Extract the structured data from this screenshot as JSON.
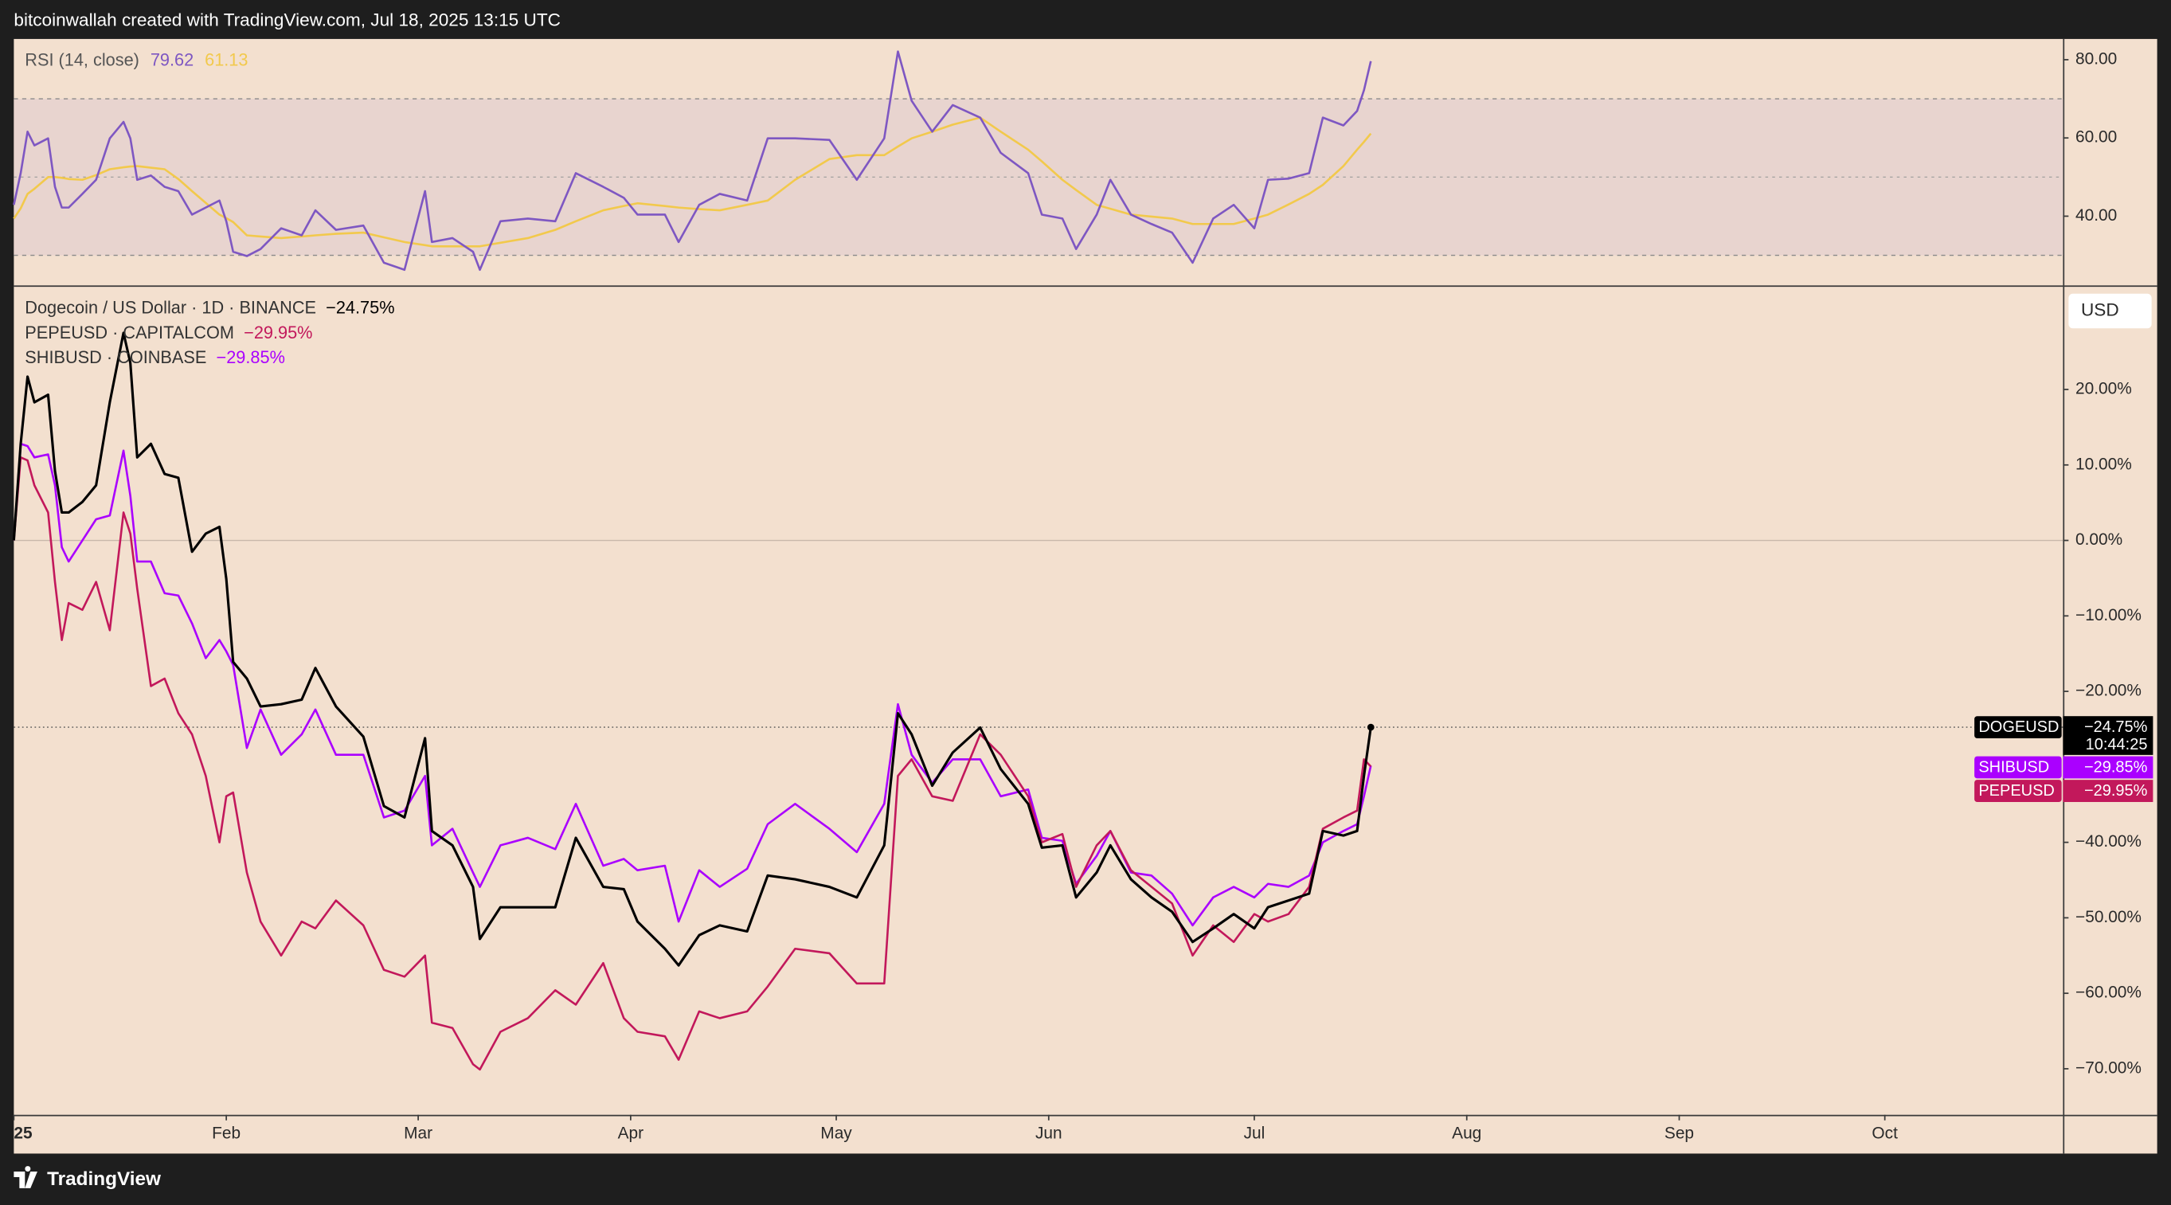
{
  "header": "bitcoinwallah created with TradingView.com, Jul 18, 2025 13:15 UTC",
  "footer": "TradingView",
  "chart_data": [
    {
      "type": "line",
      "title": "RSI (14, close)",
      "x": [
        0,
        1,
        2,
        3,
        5,
        6,
        7,
        8,
        10,
        12,
        14,
        16,
        17,
        18,
        20,
        22,
        24,
        26,
        28,
        30,
        31,
        32,
        34,
        36,
        39,
        42,
        44,
        47,
        51,
        54,
        57,
        60,
        61,
        64,
        67,
        68,
        71,
        75,
        79,
        82,
        86,
        89,
        91,
        95,
        97,
        100,
        103,
        107,
        110,
        114,
        119,
        123,
        127,
        129,
        131,
        134,
        137,
        141,
        144,
        148,
        150,
        153,
        155,
        158,
        160,
        163,
        166,
        169,
        172,
        175,
        178,
        181,
        183,
        186,
        189,
        191,
        194,
        196,
        197,
        198
      ],
      "xlim": [
        0,
        299
      ],
      "ylim": [
        22.3,
        85.3
      ],
      "yticks": [
        {
          "value": 40,
          "label": "40.00"
        },
        {
          "value": 60,
          "label": "60.00"
        },
        {
          "value": 80,
          "label": "80.00"
        }
      ],
      "bands": [
        30,
        70
      ],
      "midline": 50,
      "band_color": "#e8d4cf",
      "series": [
        {
          "color": "#7e57c2",
          "values": [
            42.9,
            51,
            61.6,
            58.1,
            59.9,
            47.5,
            42.2,
            42.2,
            45.7,
            49.3,
            59.9,
            64.1,
            59.9,
            49.3,
            50.4,
            47.5,
            46.4,
            40.4,
            42.2,
            44,
            38.7,
            30.9,
            29.8,
            31.6,
            36.9,
            35.1,
            41.5,
            36.5,
            37.6,
            28.1,
            26.3,
            46.4,
            33.4,
            34.4,
            30.9,
            26.3,
            38.7,
            39.4,
            38.7,
            51,
            47.5,
            44.7,
            40.4,
            40.4,
            33.4,
            42.9,
            45.7,
            44,
            59.9,
            59.9,
            59.5,
            49.3,
            59.9,
            82.1,
            69.5,
            61.6,
            68.4,
            65.2,
            56.2,
            51,
            40.4,
            39.4,
            31.6,
            40.4,
            49.3,
            40.4,
            38,
            35.8,
            28.1,
            39.4,
            42.9,
            36.9,
            49.3,
            49.6,
            51,
            65.2,
            63.2,
            66.9,
            72.2,
            79.62
          ]
        },
        {
          "color": "#f2c94c",
          "values": [
            39.4,
            42,
            45.7,
            47,
            50,
            50,
            49.8,
            49.5,
            49.3,
            50.5,
            52,
            52.5,
            52.7,
            52.8,
            52.4,
            52,
            49.5,
            46.4,
            43.4,
            40.4,
            39.5,
            38.5,
            35.1,
            34.8,
            34.4,
            34.8,
            35.1,
            35.5,
            35.8,
            34.6,
            33.4,
            32.6,
            32.3,
            32.3,
            32.3,
            32.3,
            33.2,
            34.4,
            36.5,
            38.7,
            41.5,
            42.6,
            43.3,
            42.6,
            42.2,
            41.8,
            41.5,
            42.9,
            44,
            49.3,
            54.6,
            55.6,
            55.6,
            57.8,
            59.9,
            61.6,
            63.4,
            65.2,
            61.6,
            57,
            54,
            49.3,
            46.7,
            42.9,
            41.9,
            40.4,
            39.9,
            39.4,
            38,
            38,
            38,
            39.4,
            40.4,
            43,
            45.7,
            48,
            52.8,
            57,
            59,
            61.13
          ]
        }
      ]
    },
    {
      "type": "line",
      "unit": "USD",
      "countdown": "10:44:25",
      "price_line": true,
      "x": [
        0,
        1,
        2,
        3,
        5,
        6,
        7,
        8,
        10,
        12,
        14,
        16,
        17,
        18,
        20,
        22,
        24,
        26,
        28,
        30,
        31,
        32,
        34,
        36,
        39,
        42,
        44,
        47,
        51,
        54,
        57,
        60,
        61,
        64,
        67,
        68,
        71,
        75,
        79,
        82,
        86,
        89,
        91,
        95,
        97,
        100,
        103,
        107,
        110,
        114,
        119,
        123,
        127,
        129,
        131,
        134,
        137,
        141,
        144,
        148,
        150,
        153,
        155,
        158,
        160,
        163,
        166,
        169,
        172,
        175,
        178,
        181,
        183,
        186,
        189,
        191,
        194,
        196,
        197,
        198
      ],
      "xlim": [
        0,
        299
      ],
      "ylim": [
        -76.1,
        33.6
      ],
      "xticks": [
        {
          "value": 0,
          "label": "25"
        },
        {
          "value": 31,
          "label": "Feb"
        },
        {
          "value": 59,
          "label": "Mar"
        },
        {
          "value": 90,
          "label": "Apr"
        },
        {
          "value": 120,
          "label": "May"
        },
        {
          "value": 151,
          "label": "Jun"
        },
        {
          "value": 181,
          "label": "Jul"
        },
        {
          "value": 212,
          "label": "Aug"
        },
        {
          "value": 243,
          "label": "Sep"
        },
        {
          "value": 273,
          "label": "Oct"
        }
      ],
      "yticks": [
        {
          "value": -70,
          "label": "−70.00%"
        },
        {
          "value": -60,
          "label": "−60.00%"
        },
        {
          "value": -50,
          "label": "−50.00%"
        },
        {
          "value": -40,
          "label": "−40.00%"
        },
        {
          "value": -20,
          "label": "−20.00%"
        },
        {
          "value": -10,
          "label": "−10.00%"
        },
        {
          "value": 0,
          "label": "0.00%"
        },
        {
          "value": 10,
          "label": "10.00%"
        },
        {
          "value": 20,
          "label": "20.00%"
        }
      ],
      "baseline": 0,
      "series": [
        {
          "name": "Dogecoin / US Dollar · 1D · BINANCE",
          "tag": "DOGEUSD",
          "last_label": "−24.75%",
          "color": "#000000",
          "values": [
            0,
            12.8,
            21.7,
            18.3,
            19.3,
            9.2,
            3.7,
            3.7,
            5.1,
            7.3,
            18.3,
            27.5,
            23.5,
            11,
            12.8,
            8.8,
            8.3,
            -1.5,
            0.9,
            1.8,
            -5.1,
            -16.1,
            -18.3,
            -22,
            -21.7,
            -21.1,
            -16.9,
            -22,
            -26,
            -35.2,
            -36.7,
            -26.2,
            -38.5,
            -40.4,
            -45.9,
            -52.8,
            -48.6,
            -48.6,
            -48.6,
            -39.4,
            -45.9,
            -46.2,
            -50.5,
            -54.1,
            -56.3,
            -52.3,
            -51,
            -51.8,
            -44.4,
            -44.9,
            -45.9,
            -47.3,
            -40.4,
            -22.9,
            -25.7,
            -32.5,
            -28.1,
            -24.8,
            -30.3,
            -34.9,
            -40.7,
            -40.4,
            -47.3,
            -44,
            -40.4,
            -44.9,
            -47.3,
            -49.2,
            -53.2,
            -51.4,
            -49.5,
            -51.4,
            -48.6,
            -47.7,
            -46.8,
            -38.5,
            -39.1,
            -38.5,
            -31.2,
            -24.75
          ]
        },
        {
          "name": "PEPEUSD · CAPITALCOM",
          "tag": "PEPEUSD",
          "last_label": "−29.95%",
          "color": "#c2185b",
          "values": [
            0,
            11,
            10.6,
            7.3,
            3.7,
            -5.5,
            -13.2,
            -8.3,
            -9.2,
            -5.5,
            -11.9,
            3.7,
            0.9,
            -6.4,
            -19.3,
            -18.3,
            -22.9,
            -25.7,
            -31.2,
            -40,
            -33.9,
            -33.4,
            -44,
            -50.5,
            -55,
            -50.5,
            -51.4,
            -47.7,
            -51,
            -56.9,
            -57.8,
            -55,
            -63.9,
            -64.6,
            -69.4,
            -70.1,
            -65.1,
            -63.3,
            -59.6,
            -61.5,
            -56,
            -63.3,
            -65.1,
            -65.7,
            -68.8,
            -62.4,
            -63.3,
            -62.4,
            -59.1,
            -54.1,
            -54.7,
            -58.7,
            -58.7,
            -31.2,
            -29,
            -33.9,
            -34.5,
            -25.7,
            -28.4,
            -33.9,
            -40,
            -38.9,
            -45.9,
            -40.4,
            -38.5,
            -43.7,
            -45.9,
            -48.1,
            -55,
            -51,
            -53.2,
            -49.5,
            -50.5,
            -49.5,
            -45.9,
            -38.2,
            -36.7,
            -35.8,
            -29,
            -29.95
          ]
        },
        {
          "name": "SHIBUSD · COINBASE",
          "tag": "SHIBUSD",
          "last_label": "−29.85%",
          "color": "#aa00ff",
          "values": [
            0,
            12.8,
            12.5,
            11,
            11.4,
            7.3,
            -0.9,
            -2.8,
            0,
            2.8,
            3.3,
            11.9,
            5.9,
            -2.8,
            -2.8,
            -7,
            -7.3,
            -11,
            -15.6,
            -13.2,
            -14.7,
            -16.5,
            -27.5,
            -22.4,
            -28.4,
            -25.7,
            -22.4,
            -28.4,
            -28.4,
            -36.7,
            -35.8,
            -31.2,
            -40.4,
            -38.2,
            -44,
            -45.9,
            -40.4,
            -39.4,
            -40.9,
            -34.9,
            -43.1,
            -42.2,
            -43.7,
            -43.1,
            -50.5,
            -43.7,
            -45.9,
            -43.5,
            -37.6,
            -34.9,
            -38.2,
            -41.3,
            -34.9,
            -21.7,
            -28.4,
            -32.1,
            -29,
            -29,
            -33.9,
            -33,
            -39.4,
            -39.8,
            -45.5,
            -41.8,
            -38.5,
            -44,
            -44.4,
            -46.8,
            -51,
            -47.3,
            -45.9,
            -47.3,
            -45.5,
            -45.9,
            -44.4,
            -40,
            -38.5,
            -37.6,
            -33.9,
            -29.85
          ]
        }
      ]
    }
  ]
}
